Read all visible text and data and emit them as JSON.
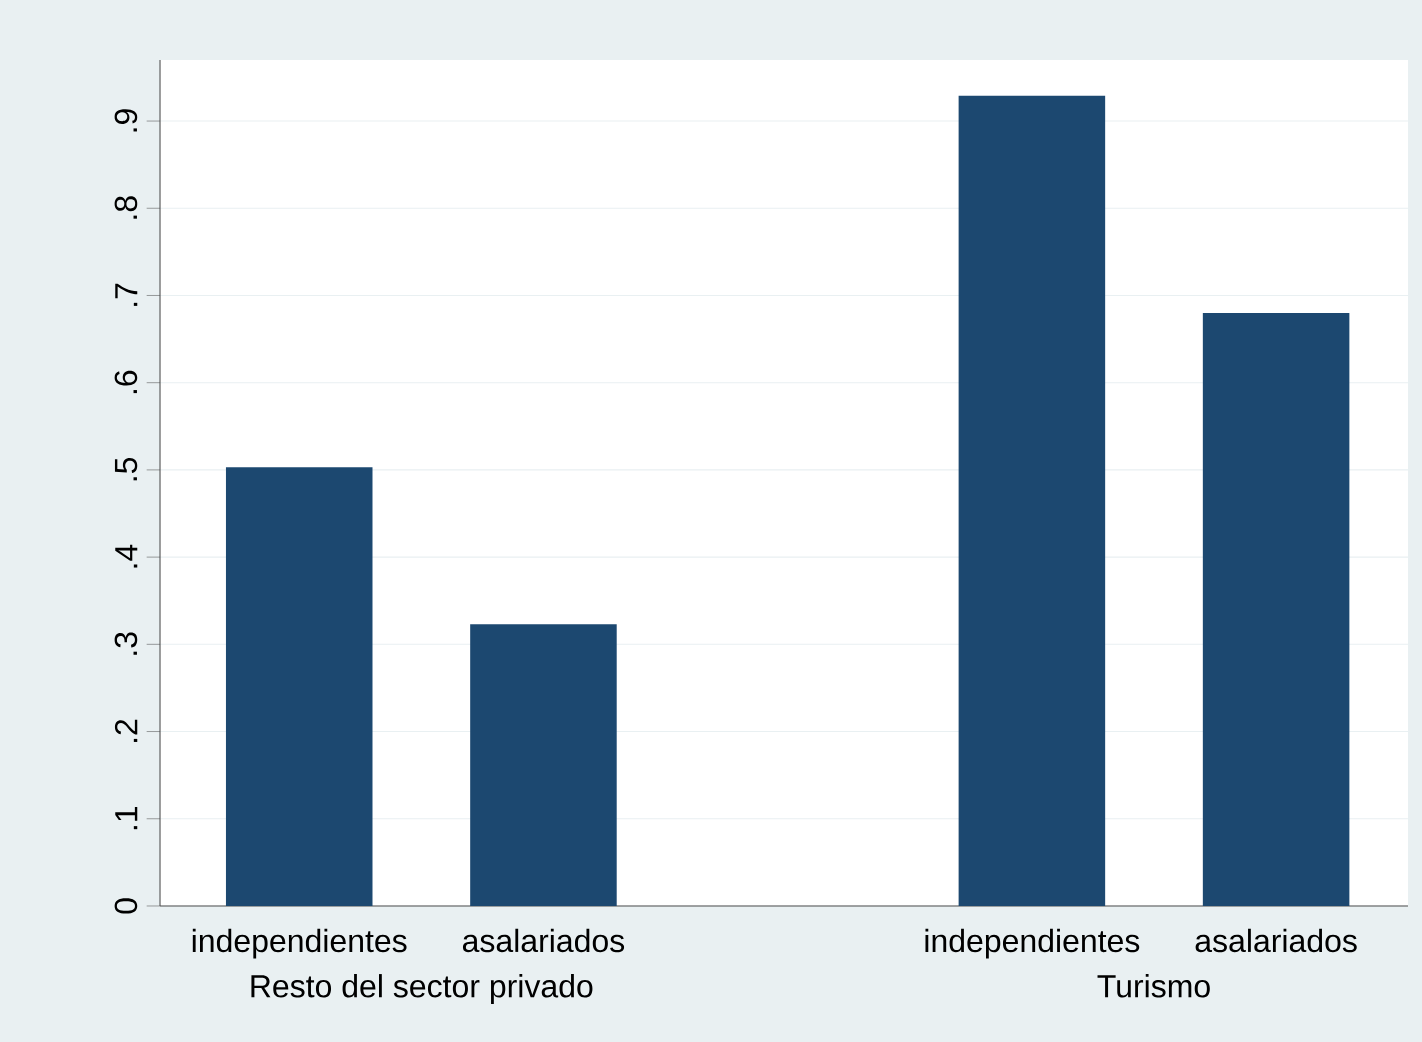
{
  "chart_data": {
    "type": "bar",
    "categories": [
      "independientes",
      "asalariados",
      null,
      "independientes",
      "asalariados"
    ],
    "values": [
      0.503,
      0.323,
      null,
      0.929,
      0.68
    ],
    "color": "#1c4870",
    "ylim": [
      0,
      0.97
    ],
    "yticks": [
      0,
      {
        "value": 0.1,
        "label": ".1"
      },
      {
        "value": 0.2,
        "label": ".2"
      },
      {
        "value": 0.3,
        "label": ".3"
      },
      {
        "value": 0.4,
        "label": ".4"
      },
      {
        "value": 0.5,
        "label": ".5"
      },
      {
        "value": 0.6,
        "label": ".6"
      },
      {
        "value": 0.7,
        "label": ".7"
      },
      {
        "value": 0.8,
        "label": ".8"
      },
      {
        "value": 0.9,
        "label": ".9"
      }
    ],
    "grid": "y",
    "annotations": [
      "Resto del sector privado",
      "Turismo"
    ]
  }
}
